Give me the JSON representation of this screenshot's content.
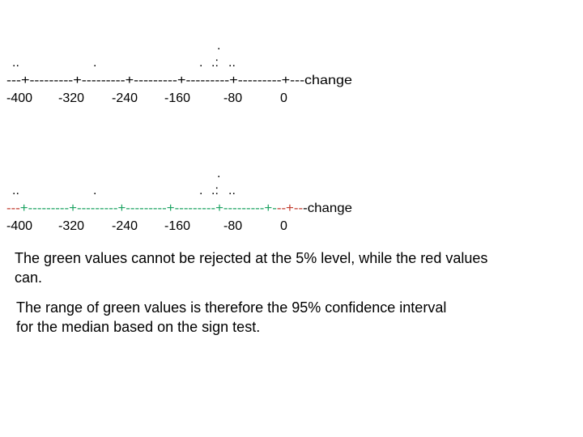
{
  "plots": [
    {
      "dot_rows": [
        [
          "."
        ],
        [
          "..",
          ".",
          ".",
          ".:",
          ".."
        ]
      ],
      "axis": [
        "---+---------+---------+---------+---------+---------+---change"
      ],
      "tick_labels": [
        "-400",
        "-320",
        "-240",
        "-160",
        "-80",
        "0"
      ]
    },
    {
      "dot_rows": [
        [
          "."
        ],
        [
          "..",
          ".",
          ".",
          ".:",
          ".."
        ]
      ],
      "axis": [
        "---",
        "+---------+---------+---------+---------+---------+-",
        "--+--",
        "-change"
      ],
      "tick_labels": [
        "-400",
        "-320",
        "-240",
        "-160",
        "-80",
        "0"
      ]
    }
  ],
  "paragraphs": [
    [
      "The green values cannot be rejected at the 5% level, while the red values",
      "can."
    ],
    [
      "The range of green values is therefore the 95% confidence interval",
      "for the median based on the sign test."
    ]
  ]
}
